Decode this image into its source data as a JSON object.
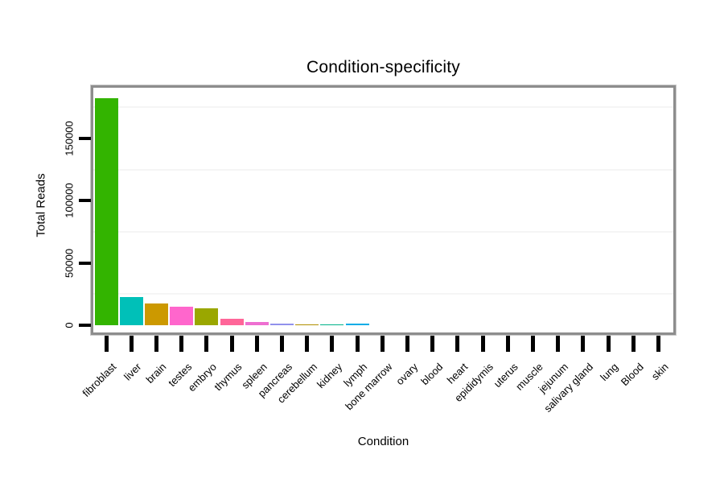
{
  "chart_data": {
    "type": "bar",
    "title": "Condition-specificity",
    "xlabel": "Condition",
    "ylabel": "Total Reads",
    "categories": [
      "fibroblast",
      "liver",
      "brain",
      "testes",
      "embryo",
      "thymus",
      "spleen",
      "pancreas",
      "cerebellum",
      "kidney",
      "lymph",
      "bone marrow",
      "ovary",
      "blood",
      "heart",
      "epididymis",
      "uterus",
      "muscle",
      "jejunum",
      "salivary gland",
      "lung",
      "Blood",
      "skin"
    ],
    "values": [
      182500,
      22500,
      17700,
      14800,
      13900,
      5000,
      2900,
      1600,
      950,
      900,
      1050,
      0,
      0,
      0,
      0,
      0,
      0,
      0,
      0,
      0,
      0,
      0,
      0
    ],
    "bar_colors": [
      "#33b400",
      "#00c0b8",
      "#cc9900",
      "#ff66cc",
      "#9aa700",
      "#ff6699",
      "#ee6fd1",
      "#9191ec",
      "#b09000",
      "#00b289",
      "#00ace6",
      null,
      null,
      null,
      null,
      null,
      null,
      null,
      null,
      null,
      null,
      null,
      null
    ],
    "yticks": [
      0,
      50000,
      100000,
      150000
    ],
    "ytick_labels": [
      "0",
      "50000",
      "100000",
      "150000"
    ],
    "minor_gridlines": [
      25000,
      75000,
      125000,
      175000
    ],
    "ylim": [
      0,
      195000
    ],
    "grid": "minor-only",
    "legend": "none",
    "panel_border_color": "#8d8d8d",
    "grid_color": "#f5f5f5",
    "tick_color": "#000000"
  }
}
